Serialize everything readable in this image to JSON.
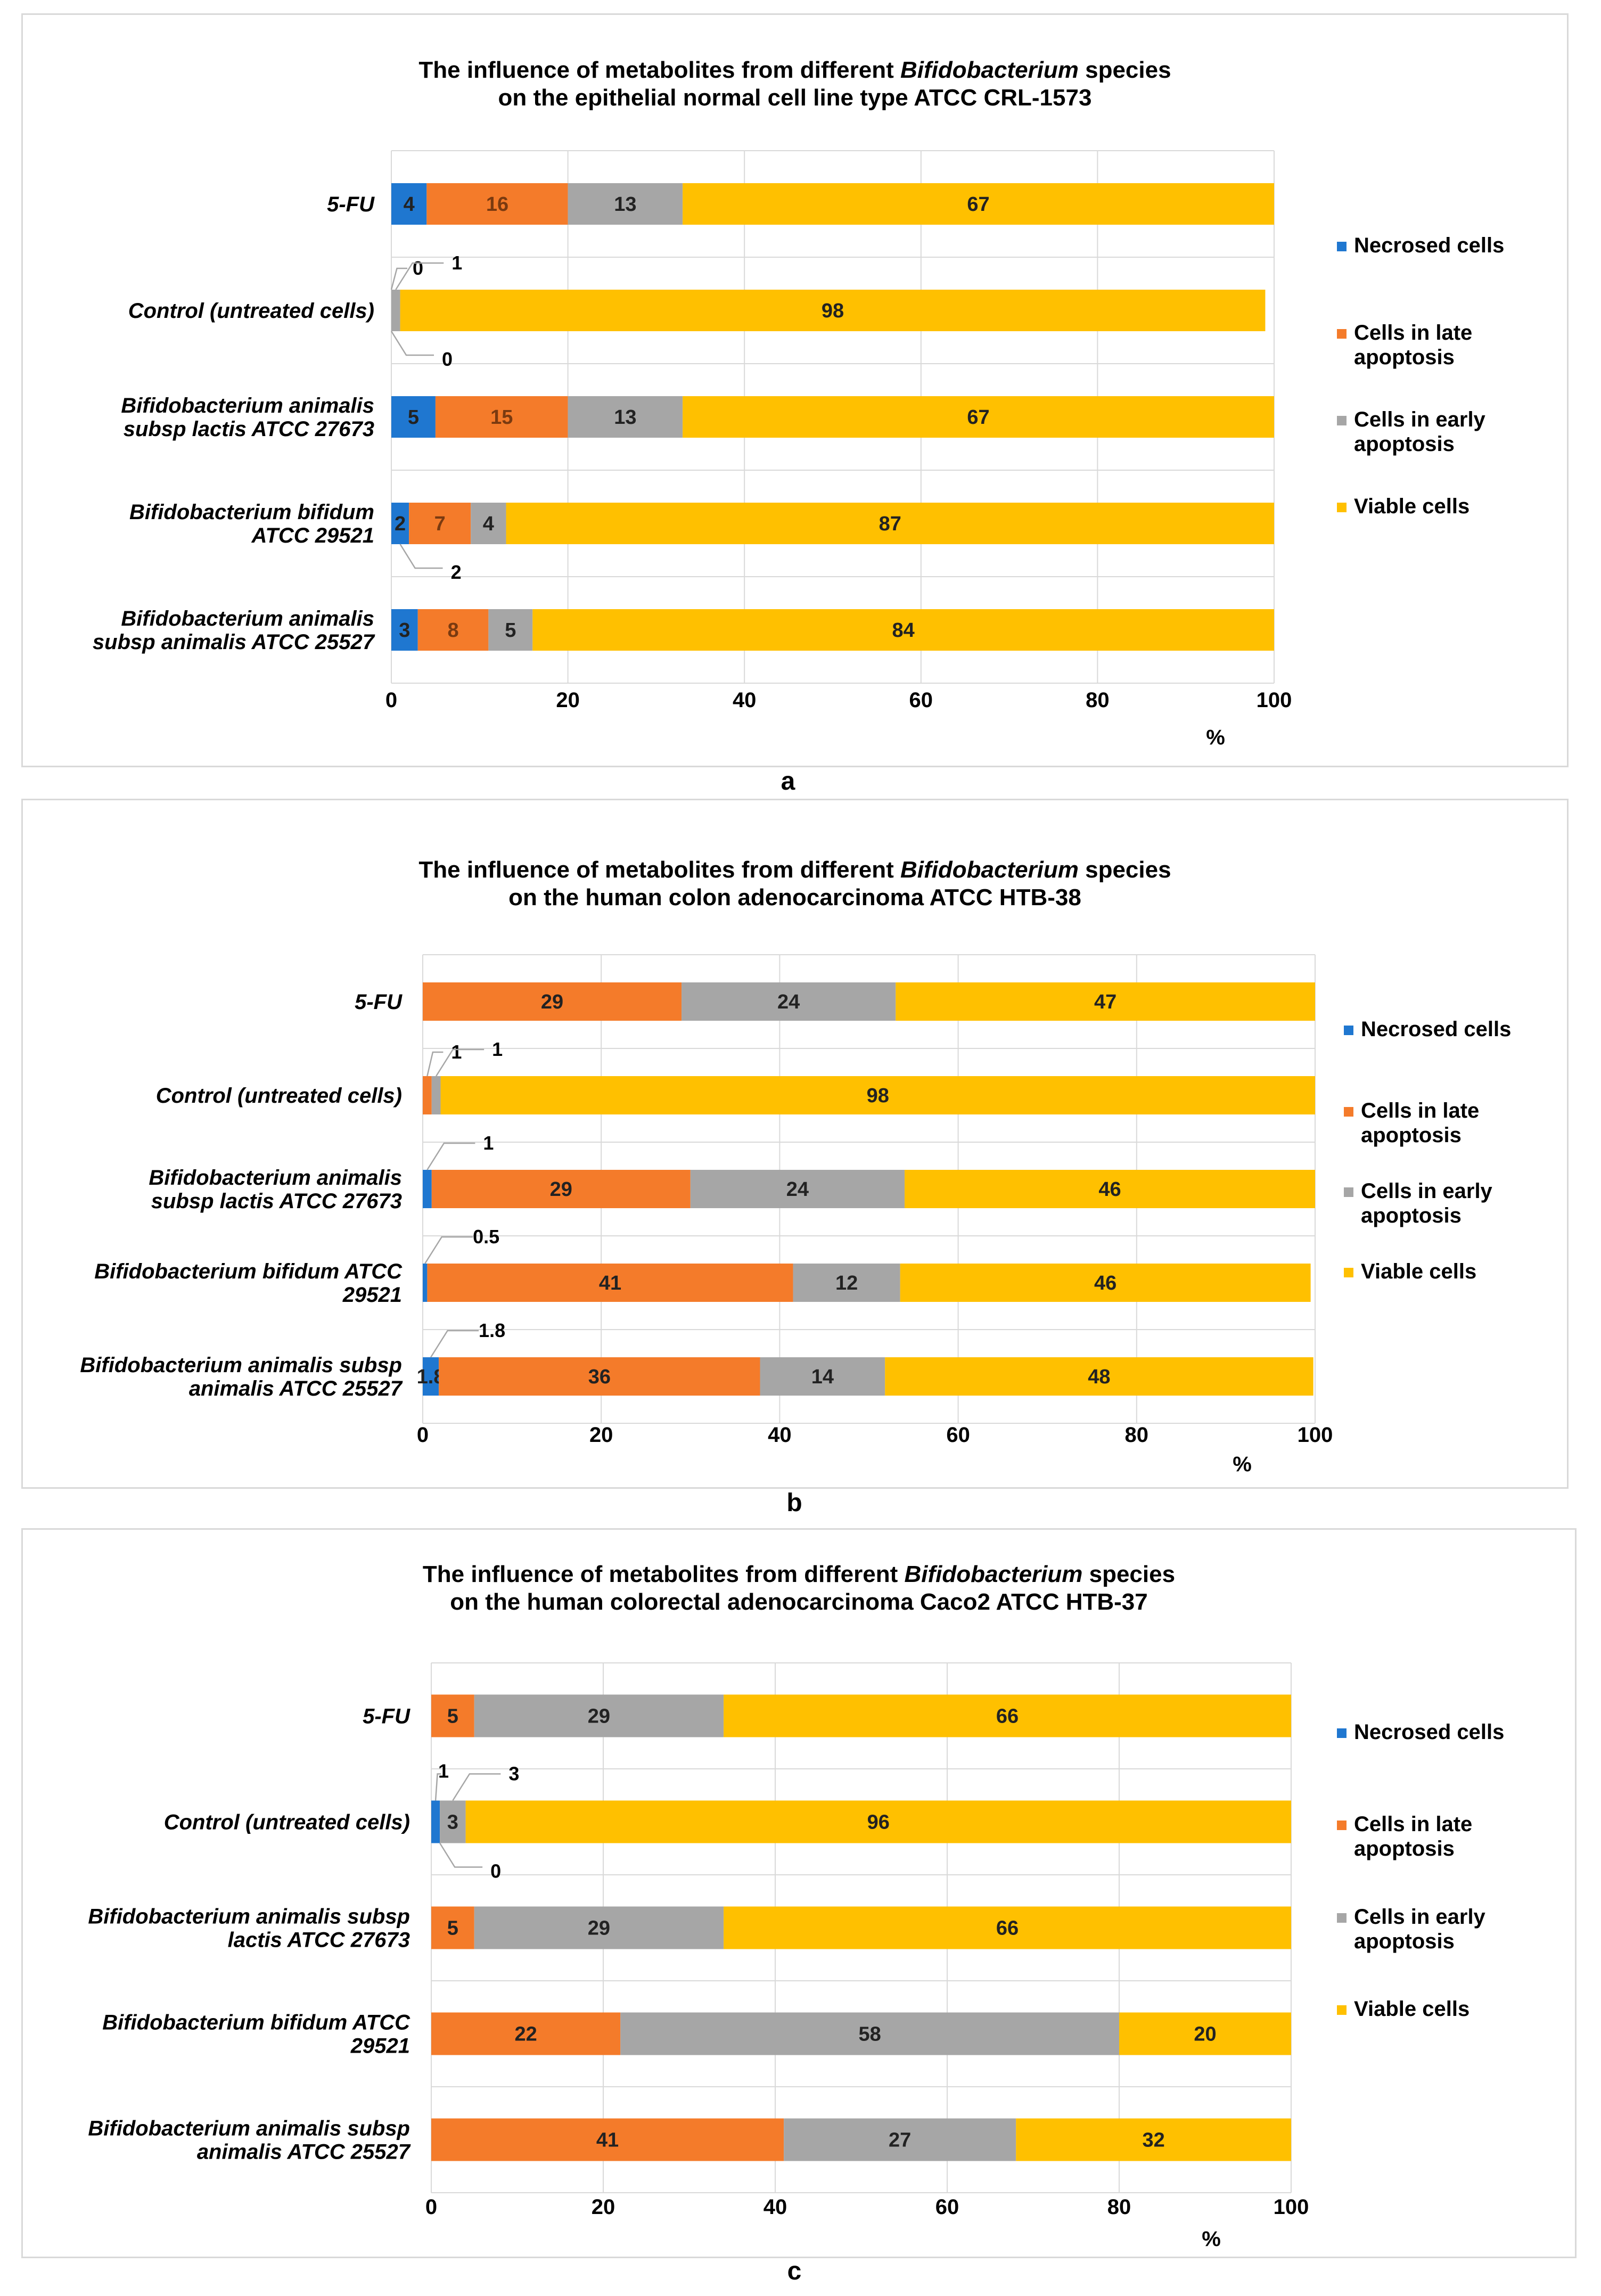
{
  "colors": {
    "necrosed": "#1f77d0",
    "late": "#f47b2a",
    "early": "#a6a6a6",
    "viable": "#ffc000",
    "grid": "#d9d9d9",
    "border": "#d9d9d9"
  },
  "legend": [
    "Necrosed cells",
    "Cells in late apoptosis",
    "Cells in early apoptosis",
    "Viable cells"
  ],
  "chart_data": [
    {
      "type": "bar",
      "orientation": "horizontal",
      "stacked": true,
      "caption": "a",
      "title_line1_pre": "The influence of metabolites from different ",
      "title_line1_italic": "Bifidobacterium",
      "title_line1_post": " species",
      "title_line2": "on the epithelial normal cell line type ATCC CRL-1573",
      "xlabel": "%",
      "xlim": [
        0,
        100
      ],
      "xticks": [
        0,
        20,
        40,
        60,
        80,
        100
      ],
      "categories": [
        "5-FU",
        "Control (untreated cells)",
        "Bifidobacterium animalis subsp  lactis ATCC 27673",
        "Bifidobacterium bifidum ATCC 29521",
        "Bifidobacterium animalis subsp  animalis ATCC 25527"
      ],
      "category_lines": [
        [
          "5-FU"
        ],
        [
          "Control (untreated cells)"
        ],
        [
          "Bifidobacterium animalis",
          "subsp  lactis ATCC 27673"
        ],
        [
          "Bifidobacterium bifidum",
          "ATCC 29521"
        ],
        [
          "Bifidobacterium animalis",
          "subsp  animalis ATCC 25527"
        ]
      ],
      "series": [
        {
          "name": "Necrosed cells",
          "values": [
            4,
            0,
            5,
            2,
            3
          ]
        },
        {
          "name": "Cells in late apoptosis",
          "values": [
            16,
            0,
            15,
            7,
            8
          ]
        },
        {
          "name": "Cells in early apoptosis",
          "values": [
            13,
            1,
            13,
            4,
            5
          ]
        },
        {
          "name": "Viable cells",
          "values": [
            67,
            98,
            67,
            87,
            84
          ]
        }
      ],
      "callouts": [
        {
          "row": 1,
          "series": 0,
          "label": "0",
          "side": "up-left"
        },
        {
          "row": 1,
          "series": 2,
          "label": "1",
          "side": "up-right"
        },
        {
          "row": 1,
          "series": 1,
          "label": "0",
          "side": "down-right"
        },
        {
          "row": 3,
          "series": 0,
          "label": "2",
          "side": "down-right"
        }
      ]
    },
    {
      "type": "bar",
      "orientation": "horizontal",
      "stacked": true,
      "caption": "b",
      "title_line1_pre": "The influence of metabolites from different ",
      "title_line1_italic": "Bifidobacterium",
      "title_line1_post": " species",
      "title_line2": "on the human colon adenocarcinoma ATCC HTB-38",
      "xlabel": "%",
      "xlim": [
        0,
        100
      ],
      "xticks": [
        0,
        20,
        40,
        60,
        80,
        100
      ],
      "categories": [
        "5-FU",
        "Control (untreated cells)",
        "Bifidobacterium animalis subsp  lactis ATCC 27673",
        "Bifidobacterium bifidum ATCC 29521",
        "Bifidobacterium animalis  subsp animalis ATCC 25527"
      ],
      "category_lines": [
        [
          "5-FU"
        ],
        [
          "Control (untreated cells)"
        ],
        [
          "Bifidobacterium animalis",
          "subsp  lactis ATCC 27673"
        ],
        [
          "Bifidobacterium bifidum ATCC",
          "29521"
        ],
        [
          "Bifidobacterium animalis  subsp",
          "animalis ATCC 25527"
        ]
      ],
      "series": [
        {
          "name": "Necrosed cells",
          "values": [
            0,
            0,
            1,
            0.5,
            1.8
          ]
        },
        {
          "name": "Cells in late apoptosis",
          "values": [
            29,
            1,
            29,
            41,
            36
          ]
        },
        {
          "name": "Cells in early apoptosis",
          "values": [
            24,
            1,
            24,
            12,
            14
          ]
        },
        {
          "name": "Viable cells",
          "values": [
            47,
            98,
            46,
            46,
            48
          ]
        }
      ],
      "callouts": [
        {
          "row": 1,
          "series": 1,
          "label": "1",
          "side": "up-right-short"
        },
        {
          "row": 1,
          "series": 2,
          "label": "1",
          "side": "up-right"
        },
        {
          "row": 2,
          "series": 0,
          "label": "1",
          "side": "up-right"
        },
        {
          "row": 3,
          "series": 0,
          "label": "0.5",
          "side": "up-right"
        },
        {
          "row": 4,
          "series": 0,
          "label": "1.8",
          "side": "up-right"
        }
      ]
    },
    {
      "type": "bar",
      "orientation": "horizontal",
      "stacked": true,
      "caption": "c",
      "title_line1_pre": "The influence of metabolites from different ",
      "title_line1_italic": "Bifidobacterium",
      "title_line1_post": " species",
      "title_line2": "on the human colorectal adenocarcinoma Caco2 ATCC HTB-37",
      "xlabel": "%",
      "xlim": [
        0,
        100
      ],
      "xticks": [
        0,
        20,
        40,
        60,
        80,
        100
      ],
      "categories": [
        "5-FU",
        "Control (untreated cells)",
        "Bifidobacterium animalis  subsp lactis ATCC 27673",
        "Bifidobacterium bifidum ATCC 29521",
        "Bifidobacterium animalis  subsp animalis ATCC 25527"
      ],
      "category_lines": [
        [
          "5-FU"
        ],
        [
          "Control (untreated cells)"
        ],
        [
          "Bifidobacterium animalis  subsp",
          "lactis ATCC 27673"
        ],
        [
          "Bifidobacterium bifidum ATCC",
          "29521"
        ],
        [
          "Bifidobacterium animalis  subsp",
          "animalis ATCC 25527"
        ]
      ],
      "series": [
        {
          "name": "Necrosed cells",
          "values": [
            0,
            1,
            0,
            0,
            0
          ]
        },
        {
          "name": "Cells in late apoptosis",
          "values": [
            5,
            0,
            5,
            22,
            41
          ]
        },
        {
          "name": "Cells in early apoptosis",
          "values": [
            29,
            3,
            29,
            58,
            27
          ]
        },
        {
          "name": "Viable cells",
          "values": [
            66,
            96,
            66,
            20,
            32
          ]
        }
      ],
      "callouts": [
        {
          "row": 1,
          "series": 0,
          "label": "1",
          "side": "up-left-small"
        },
        {
          "row": 1,
          "series": 2,
          "label": "3",
          "side": "up-right"
        },
        {
          "row": 1,
          "series": 1,
          "label": "0",
          "side": "down-right"
        }
      ]
    }
  ]
}
